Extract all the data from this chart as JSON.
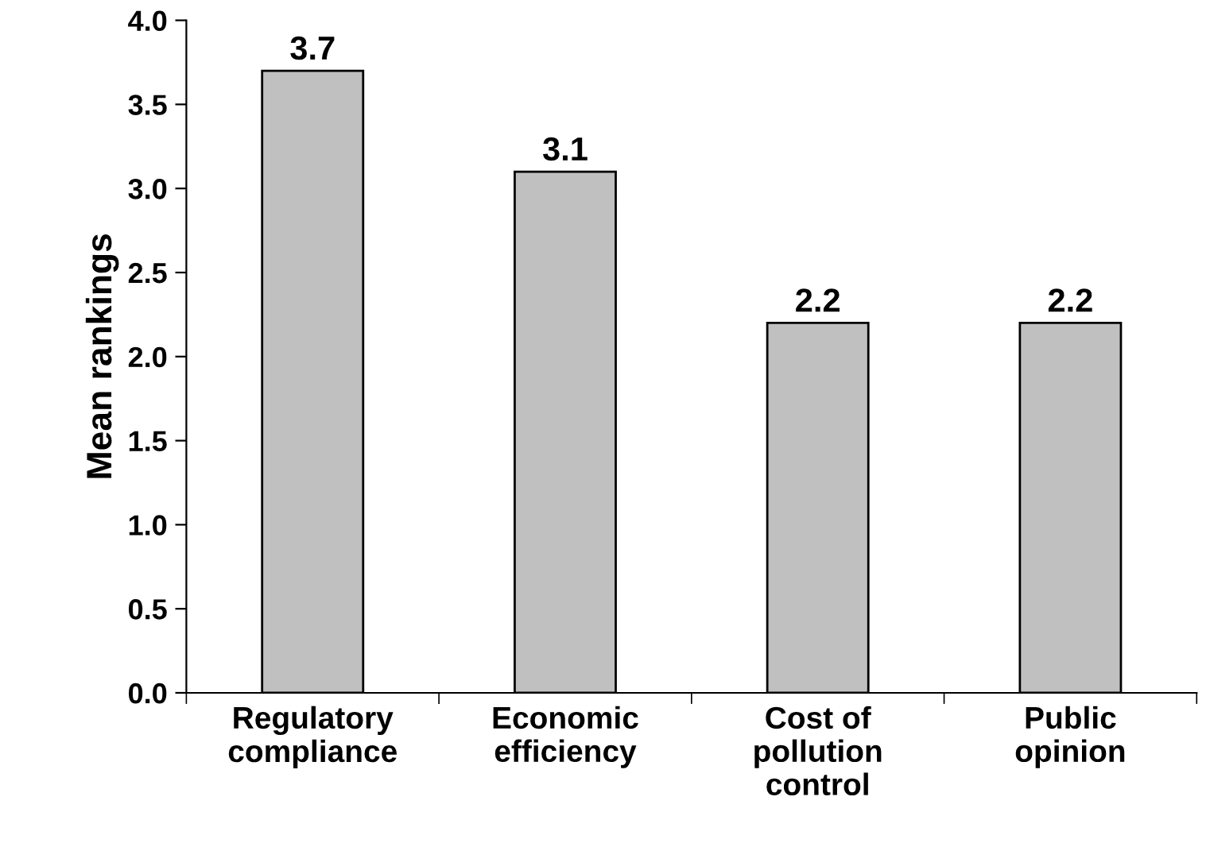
{
  "chart_data": {
    "type": "bar",
    "ylabel": "Mean rankings",
    "categories": [
      "Regulatory\ncompliance",
      "Economic\nefficiency",
      "Cost of\npollution\ncontrol",
      "Public\nopinion"
    ],
    "values": [
      3.7,
      3.1,
      2.2,
      2.2
    ],
    "color": "#c0c0c0",
    "ylim": [
      0,
      4
    ],
    "yticks": [
      "0.0",
      "0.5",
      "1.0",
      "1.5",
      "2.0",
      "2.5",
      "3.0",
      "3.5",
      "4.0"
    ],
    "data_labels": true,
    "grid": false,
    "legend": false
  }
}
